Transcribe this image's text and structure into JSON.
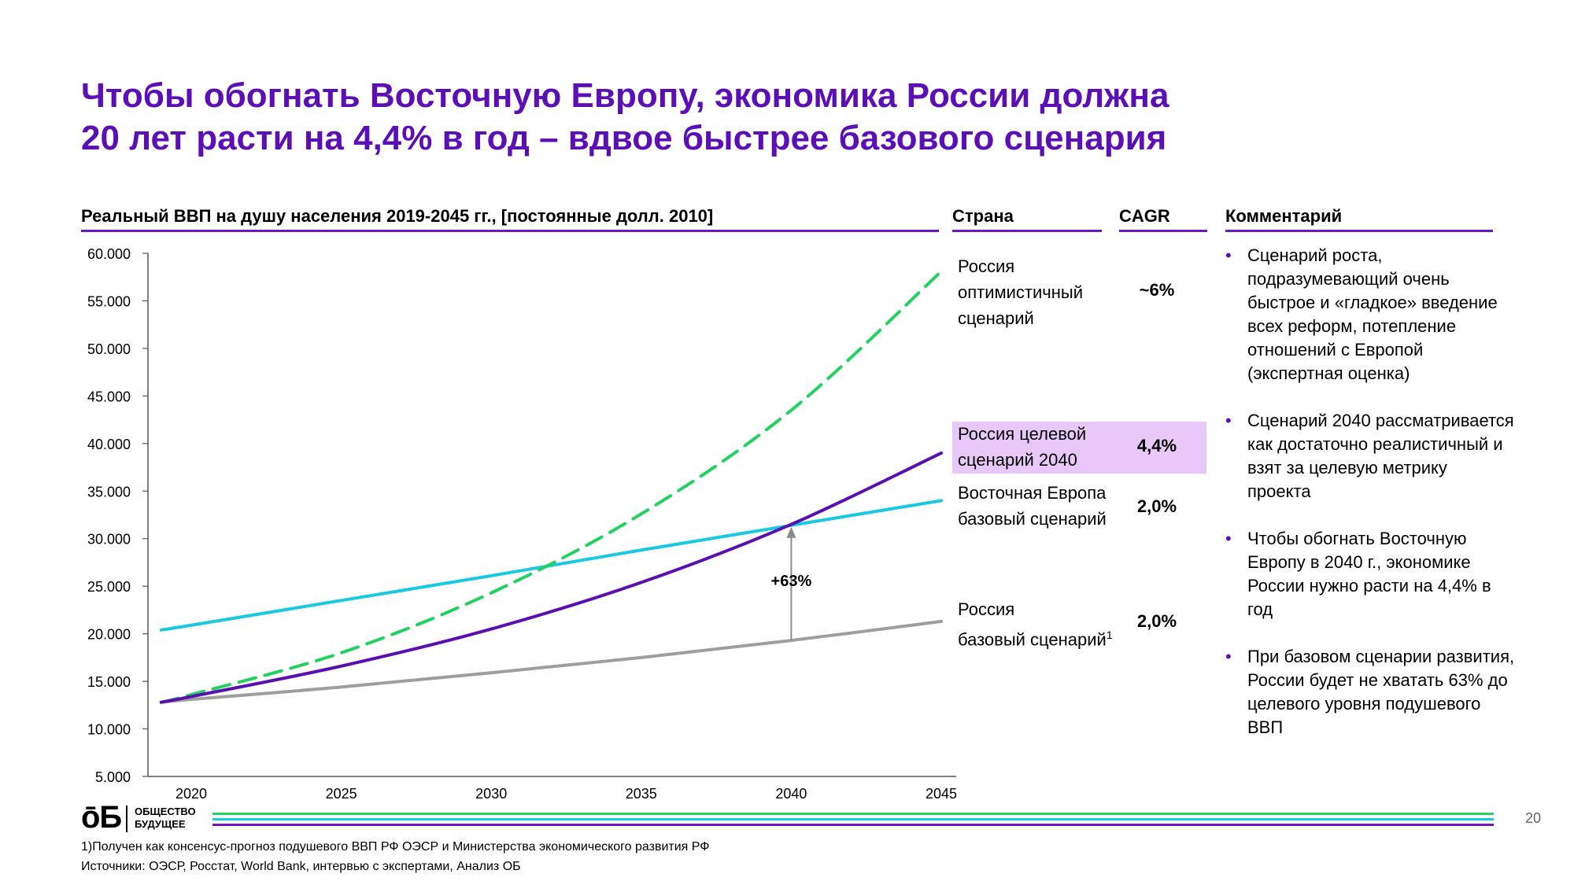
{
  "title_line1": "Чтобы обогнать Восточную Европу, экономика России должна",
  "title_line2": "20 лет расти на 4,4% в год – вдвое быстрее базового сценария",
  "headers": {
    "chart": "Реальный ВВП на душу населения 2019-2045 гг., [постоянные долл. 2010]",
    "country": "Страна",
    "cagr": "CAGR",
    "comment": "Комментарий"
  },
  "colors": {
    "accent": "#5b0fb4",
    "optimistic": "#22d160",
    "target": "#5a0fb0",
    "eastern_europe": "#19c9e0",
    "base": "#9e9e9e",
    "highlight": "#e8c8f8"
  },
  "legend": [
    {
      "line1": "Россия",
      "line2": "оптимистичный",
      "line3": "сценарий",
      "cagr": "~6%"
    },
    {
      "line1": "Россия целевой",
      "line2": "сценарий 2040",
      "cagr": "4,4%"
    },
    {
      "line1": "Восточная Европа",
      "line2": "базовый сценарий",
      "cagr": "2,0%"
    },
    {
      "line1": "Россия",
      "line2": "базовый сценарий",
      "sup": "1",
      "cagr": "2,0%"
    }
  ],
  "comments": [
    "Сценарий роста, подразумевающий очень быстрое и «гладкое» введение всех реформ, потепление отношений с Европой (экспертная оценка)",
    "Сценарий 2040 рассматривается как достаточно реалистичный и взят за целевую метрику проекта",
    "Чтобы обогнать Восточную Европу в 2040 г., экономике России нужно расти на 4,4% в год",
    "При базовом сценарии развития, России будет не хватать 63% до целевого уровня подушевого ВВП"
  ],
  "logo": {
    "mark": "ōБ",
    "line1": "ОБЩЕСТВО",
    "line2": "БУДУЩЕЕ"
  },
  "page_number": "20",
  "footnote": "1)Получен как консенсус-прогноз подушевого ВВП РФ ОЭСР и Министерства экономического развития РФ",
  "sources": "Источники: ОЭСР, Росстат, World Bank, интервью с экспертами, Анализ ОБ",
  "chart_data": {
    "type": "line",
    "title": "Реальный ВВП на душу населения 2019-2045 гг., [постоянные долл. 2010]",
    "xlim": [
      2019,
      2045
    ],
    "ylim": [
      5000,
      60000
    ],
    "x_ticks": [
      2020,
      2025,
      2030,
      2035,
      2040,
      2045
    ],
    "x_tick_labels": [
      "2020",
      "2025",
      "2030",
      "2035",
      "2040",
      "2045"
    ],
    "y_ticks": [
      5000,
      10000,
      15000,
      20000,
      25000,
      30000,
      35000,
      40000,
      45000,
      50000,
      55000,
      60000
    ],
    "y_tick_labels": [
      "5.000",
      "10.000",
      "15.000",
      "20.000",
      "25.000",
      "30.000",
      "35.000",
      "40.000",
      "45.000",
      "50.000",
      "55.000",
      "60.000"
    ],
    "grid": false,
    "series": [
      {
        "name": "Россия оптимистичный сценарий",
        "style": "dashed",
        "color": "#22d160",
        "x": [
          2019,
          2020,
          2025,
          2030,
          2035,
          2040,
          2045
        ],
        "y": [
          12800,
          13600,
          18000,
          24300,
          32600,
          43500,
          58100
        ]
      },
      {
        "name": "Россия целевой сценарий 2040",
        "style": "solid",
        "color": "#5a0fb0",
        "x": [
          2019,
          2020,
          2025,
          2030,
          2035,
          2040,
          2045
        ],
        "y": [
          12800,
          13400,
          16600,
          20500,
          25400,
          31500,
          39000
        ]
      },
      {
        "name": "Восточная Европа базовый сценарий",
        "style": "solid",
        "color": "#19c9e0",
        "x": [
          2019,
          2020,
          2025,
          2030,
          2035,
          2040,
          2045
        ],
        "y": [
          20400,
          20900,
          23500,
          26100,
          28800,
          31400,
          34000
        ]
      },
      {
        "name": "Россия базовый сценарий",
        "style": "solid",
        "color": "#9e9e9e",
        "x": [
          2019,
          2020,
          2025,
          2030,
          2035,
          2040,
          2045
        ],
        "y": [
          12800,
          13100,
          14400,
          15900,
          17500,
          19300,
          21300
        ]
      }
    ],
    "annotation": {
      "text": "+63%",
      "x": 2040,
      "from": 19300,
      "to": 31400
    }
  }
}
